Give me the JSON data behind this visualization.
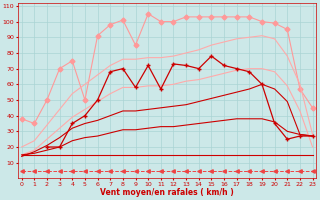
{
  "xlabel": "Vent moyen/en rafales ( km/h )",
  "bg_color": "#cce8e8",
  "grid_color": "#aad4d4",
  "x": [
    0,
    1,
    2,
    3,
    4,
    5,
    6,
    7,
    8,
    9,
    10,
    11,
    12,
    13,
    14,
    15,
    16,
    17,
    18,
    19,
    20,
    21,
    22,
    23
  ],
  "series": [
    {
      "name": "light_marker",
      "color": "#ff9999",
      "lw": 0.8,
      "marker": "D",
      "ms": 2.5,
      "y": [
        38,
        35,
        50,
        70,
        75,
        50,
        91,
        98,
        101,
        85,
        105,
        100,
        100,
        103,
        103,
        103,
        103,
        103,
        103,
        100,
        99,
        95,
        57,
        45
      ]
    },
    {
      "name": "light_upper",
      "color": "#ffaaaa",
      "lw": 0.8,
      "marker": null,
      "ms": 0,
      "y": [
        20,
        24,
        34,
        44,
        54,
        60,
        66,
        72,
        76,
        76,
        77,
        77,
        78,
        80,
        82,
        85,
        87,
        89,
        90,
        91,
        89,
        78,
        60,
        28
      ]
    },
    {
      "name": "light_lower",
      "color": "#ffaaaa",
      "lw": 0.8,
      "marker": null,
      "ms": 0,
      "y": [
        15,
        18,
        25,
        32,
        39,
        44,
        49,
        54,
        58,
        58,
        59,
        59,
        60,
        62,
        63,
        65,
        67,
        69,
        70,
        70,
        68,
        59,
        43,
        20
      ]
    },
    {
      "name": "dark_marker",
      "color": "#cc0000",
      "lw": 0.9,
      "marker": "+",
      "ms": 3.5,
      "y": [
        null,
        null,
        20,
        20,
        35,
        40,
        50,
        68,
        70,
        58,
        72,
        57,
        73,
        72,
        70,
        78,
        72,
        70,
        68,
        60,
        35,
        25,
        27,
        27
      ]
    },
    {
      "name": "dark_mid",
      "color": "#cc0000",
      "lw": 0.8,
      "marker": null,
      "ms": 0,
      "y": [
        14,
        17,
        21,
        26,
        32,
        35,
        37,
        40,
        43,
        43,
        44,
        45,
        46,
        47,
        49,
        51,
        53,
        55,
        57,
        60,
        57,
        49,
        28,
        27
      ]
    },
    {
      "name": "dark_lower",
      "color": "#cc0000",
      "lw": 0.8,
      "marker": null,
      "ms": 0,
      "y": [
        15,
        16,
        18,
        20,
        24,
        26,
        27,
        29,
        31,
        31,
        32,
        33,
        33,
        34,
        35,
        36,
        37,
        38,
        38,
        38,
        36,
        30,
        28,
        27
      ]
    },
    {
      "name": "dark_flat",
      "color": "#cc0000",
      "lw": 0.8,
      "marker": null,
      "ms": 0,
      "y": [
        15,
        15,
        15,
        15,
        15,
        15,
        15,
        15,
        15,
        15,
        15,
        15,
        15,
        15,
        15,
        15,
        15,
        15,
        15,
        15,
        15,
        15,
        15,
        15
      ]
    },
    {
      "name": "dashes_bottom",
      "color": "#ee4444",
      "lw": 0.7,
      "marker": "<",
      "ms": 2.5,
      "linestyle": "--",
      "y": [
        5,
        5,
        5,
        5,
        5,
        5,
        5,
        5,
        5,
        5,
        5,
        5,
        5,
        5,
        5,
        5,
        5,
        5,
        5,
        5,
        5,
        5,
        5,
        5
      ]
    }
  ],
  "ylim": [
    0,
    112
  ],
  "yticks": [
    10,
    20,
    30,
    40,
    50,
    60,
    70,
    80,
    90,
    100,
    110
  ],
  "xlim": [
    -0.3,
    23.3
  ],
  "xticks": [
    0,
    1,
    2,
    3,
    4,
    5,
    6,
    7,
    8,
    9,
    10,
    11,
    12,
    13,
    14,
    15,
    16,
    17,
    18,
    19,
    20,
    21,
    22,
    23
  ]
}
